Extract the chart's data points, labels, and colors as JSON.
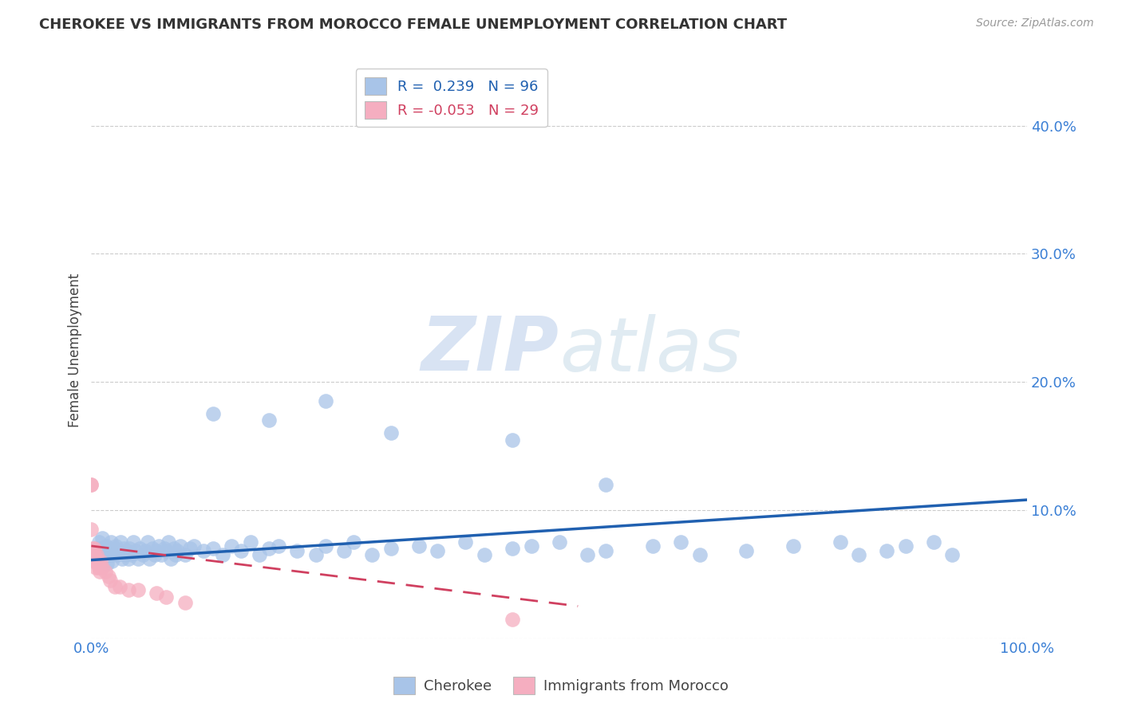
{
  "title": "CHEROKEE VS IMMIGRANTS FROM MOROCCO FEMALE UNEMPLOYMENT CORRELATION CHART",
  "source": "Source: ZipAtlas.com",
  "ylabel": "Female Unemployment",
  "xlim": [
    0.0,
    1.0
  ],
  "ylim": [
    0.0,
    0.45
  ],
  "yticks": [
    0.0,
    0.1,
    0.2,
    0.3,
    0.4
  ],
  "ytick_labels": [
    "",
    "10.0%",
    "20.0%",
    "30.0%",
    "40.0%"
  ],
  "xticks": [
    0.0,
    0.2,
    0.4,
    0.6,
    0.8,
    1.0
  ],
  "xtick_labels": [
    "0.0%",
    "",
    "",
    "",
    "",
    "100.0%"
  ],
  "cherokee_R": 0.239,
  "cherokee_N": 96,
  "morocco_R": -0.053,
  "morocco_N": 29,
  "cherokee_color": "#a8c4e8",
  "morocco_color": "#f5aec0",
  "cherokee_line_color": "#2060b0",
  "morocco_line_color": "#d04060",
  "watermark_zip": "ZIP",
  "watermark_atlas": "atlas",
  "legend_label_cherokee": "Cherokee",
  "legend_label_morocco": "Immigrants from Morocco",
  "cherokee_line_x0": 0.0,
  "cherokee_line_x1": 1.0,
  "cherokee_line_y0": 0.061,
  "cherokee_line_y1": 0.108,
  "morocco_line_x0": 0.0,
  "morocco_line_x1": 0.52,
  "morocco_line_y0": 0.072,
  "morocco_line_y1": 0.025,
  "cherokee_x": [
    0.005,
    0.006,
    0.008,
    0.009,
    0.01,
    0.011,
    0.012,
    0.013,
    0.014,
    0.015,
    0.016,
    0.017,
    0.018,
    0.019,
    0.02,
    0.021,
    0.022,
    0.023,
    0.025,
    0.026,
    0.028,
    0.03,
    0.031,
    0.033,
    0.035,
    0.036,
    0.038,
    0.04,
    0.041,
    0.043,
    0.045,
    0.047,
    0.05,
    0.052,
    0.055,
    0.058,
    0.06,
    0.062,
    0.065,
    0.068,
    0.07,
    0.072,
    0.075,
    0.078,
    0.08,
    0.082,
    0.085,
    0.088,
    0.09,
    0.092,
    0.095,
    0.1,
    0.105,
    0.11,
    0.12,
    0.13,
    0.14,
    0.15,
    0.16,
    0.17,
    0.18,
    0.19,
    0.2,
    0.22,
    0.24,
    0.25,
    0.27,
    0.28,
    0.3,
    0.32,
    0.35,
    0.37,
    0.4,
    0.42,
    0.45,
    0.47,
    0.5,
    0.53,
    0.55,
    0.6,
    0.63,
    0.65,
    0.7,
    0.75,
    0.8,
    0.82,
    0.85,
    0.87,
    0.9,
    0.92,
    0.25,
    0.13,
    0.19,
    0.32,
    0.45,
    0.55
  ],
  "cherokee_y": [
    0.07,
    0.065,
    0.075,
    0.068,
    0.07,
    0.062,
    0.078,
    0.065,
    0.07,
    0.068,
    0.072,
    0.058,
    0.065,
    0.07,
    0.068,
    0.075,
    0.06,
    0.065,
    0.07,
    0.072,
    0.065,
    0.068,
    0.075,
    0.062,
    0.07,
    0.065,
    0.068,
    0.062,
    0.07,
    0.065,
    0.075,
    0.068,
    0.062,
    0.07,
    0.065,
    0.068,
    0.075,
    0.062,
    0.07,
    0.065,
    0.068,
    0.072,
    0.065,
    0.07,
    0.068,
    0.075,
    0.062,
    0.07,
    0.065,
    0.068,
    0.072,
    0.065,
    0.07,
    0.072,
    0.068,
    0.07,
    0.065,
    0.072,
    0.068,
    0.075,
    0.065,
    0.07,
    0.072,
    0.068,
    0.065,
    0.072,
    0.068,
    0.075,
    0.065,
    0.07,
    0.072,
    0.068,
    0.075,
    0.065,
    0.07,
    0.072,
    0.075,
    0.065,
    0.068,
    0.072,
    0.075,
    0.065,
    0.068,
    0.072,
    0.075,
    0.065,
    0.068,
    0.072,
    0.075,
    0.065,
    0.185,
    0.175,
    0.17,
    0.16,
    0.155,
    0.12
  ],
  "morocco_x": [
    0.0,
    0.0,
    0.0,
    0.001,
    0.001,
    0.002,
    0.002,
    0.003,
    0.003,
    0.004,
    0.005,
    0.005,
    0.006,
    0.007,
    0.008,
    0.009,
    0.01,
    0.012,
    0.015,
    0.018,
    0.02,
    0.025,
    0.03,
    0.04,
    0.05,
    0.07,
    0.08,
    0.1,
    0.45
  ],
  "morocco_y": [
    0.12,
    0.12,
    0.085,
    0.065,
    0.07,
    0.06,
    0.065,
    0.07,
    0.065,
    0.062,
    0.06,
    0.055,
    0.065,
    0.058,
    0.055,
    0.052,
    0.06,
    0.055,
    0.052,
    0.048,
    0.045,
    0.04,
    0.04,
    0.038,
    0.038,
    0.035,
    0.032,
    0.028,
    0.015
  ]
}
